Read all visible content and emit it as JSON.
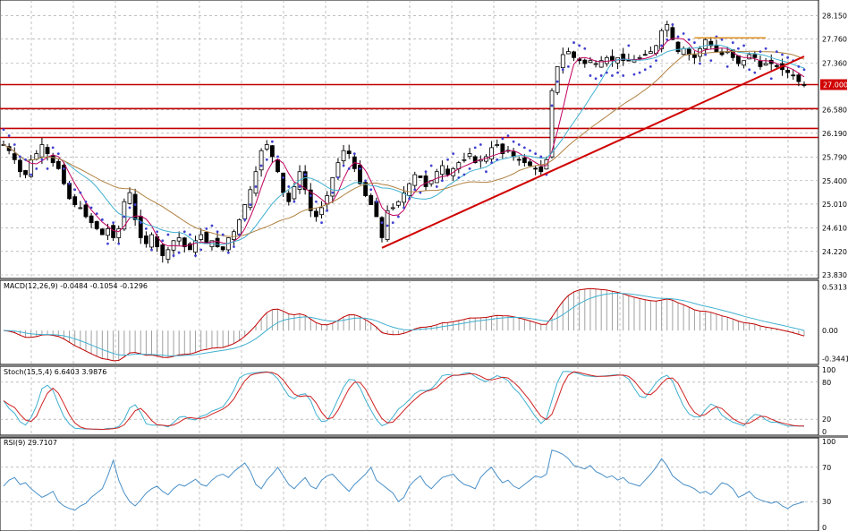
{
  "chart_data": [
    {
      "type": "candlestick",
      "price_axis_ticks": [
        "28.150",
        "27.760",
        "27.360",
        "27.000",
        "26.580",
        "26.190",
        "25.790",
        "25.400",
        "25.010",
        "24.610",
        "24.220",
        "23.830"
      ],
      "ylim": [
        23.83,
        28.35
      ],
      "current_price_label": "27.000",
      "horizontal_levels": [
        27.0,
        26.6,
        26.27,
        26.12
      ],
      "trendline": {
        "from_bar": 69,
        "from_price": 24.28,
        "to_bar": 146,
        "to_price": 27.47
      },
      "orange_level": {
        "from_bar": 126,
        "to_bar": 139,
        "price": 27.78
      },
      "close": [
        26.0,
        25.9,
        25.75,
        25.55,
        25.5,
        25.75,
        25.85,
        26.0,
        25.85,
        25.7,
        25.6,
        25.35,
        25.1,
        25.0,
        24.95,
        24.8,
        24.7,
        24.6,
        24.5,
        24.6,
        24.45,
        24.6,
        25.05,
        25.2,
        24.75,
        24.45,
        24.35,
        24.5,
        24.3,
        24.15,
        24.25,
        24.4,
        24.45,
        24.3,
        24.25,
        24.4,
        24.5,
        24.35,
        24.4,
        24.3,
        24.25,
        24.45,
        24.55,
        24.75,
        25.0,
        25.25,
        25.55,
        25.9,
        26.0,
        25.8,
        25.55,
        25.2,
        25.05,
        25.3,
        25.55,
        25.25,
        24.9,
        24.8,
        24.95,
        25.15,
        25.45,
        25.7,
        25.9,
        25.85,
        25.6,
        25.35,
        25.15,
        25.0,
        24.8,
        24.45,
        24.9,
        24.95,
        25.05,
        25.2,
        25.35,
        25.5,
        25.45,
        25.3,
        25.4,
        25.55,
        25.65,
        25.5,
        25.6,
        25.7,
        25.75,
        25.85,
        25.7,
        25.75,
        25.8,
        25.95,
        26.0,
        25.85,
        25.9,
        25.8,
        25.75,
        25.7,
        25.65,
        25.6,
        25.55,
        25.75,
        26.9,
        27.3,
        27.5,
        27.55,
        27.45,
        27.4,
        27.35,
        27.4,
        27.35,
        27.4,
        27.45,
        27.4,
        27.45,
        27.4,
        27.4,
        27.42,
        27.45,
        27.5,
        27.55,
        27.65,
        27.9,
        28.0,
        27.75,
        27.55,
        27.6,
        27.5,
        27.45,
        27.6,
        27.75,
        27.65,
        27.55,
        27.5,
        27.55,
        27.45,
        27.35,
        27.4,
        27.5,
        27.45,
        27.3,
        27.35,
        27.35,
        27.3,
        27.25,
        27.2,
        27.15,
        27.05,
        27.0
      ]
    },
    {
      "type": "line",
      "indicator_label": "MACD(12,26,9) -0.0484 -0.1054 -0.1296",
      "axis_ticks": [
        "0.5313",
        "0.00",
        "-0.3441"
      ],
      "ylim": [
        -0.37,
        0.57
      ]
    },
    {
      "type": "line",
      "indicator_label": "Stoch(15,5,4) 6.6403 3.9876",
      "axis_ticks": [
        "100",
        "80",
        "20",
        "0"
      ],
      "ylim": [
        0,
        100
      ]
    },
    {
      "type": "line",
      "indicator_label": "RSI(9) 29.7107",
      "axis_ticks": [
        "100",
        "70",
        "30",
        "0"
      ],
      "ylim": [
        0,
        100
      ],
      "values": [
        48,
        55,
        58,
        50,
        52,
        45,
        40,
        35,
        38,
        42,
        30,
        25,
        22,
        20,
        25,
        28,
        35,
        40,
        45,
        60,
        78,
        55,
        40,
        30,
        25,
        32,
        40,
        45,
        48,
        42,
        38,
        45,
        50,
        48,
        52,
        56,
        50,
        48,
        55,
        60,
        62,
        58,
        65,
        70,
        75,
        65,
        50,
        45,
        55,
        62,
        70,
        60,
        50,
        45,
        52,
        58,
        48,
        45,
        55,
        60,
        62,
        55,
        48,
        42,
        50,
        56,
        62,
        70,
        55,
        50,
        45,
        40,
        30,
        35,
        48,
        55,
        60,
        50,
        45,
        52,
        58,
        60,
        62,
        55,
        50,
        48,
        45,
        58,
        65,
        70,
        60,
        52,
        55,
        48,
        45,
        50,
        55,
        60,
        58,
        62,
        90,
        88,
        85,
        80,
        72,
        70,
        68,
        72,
        65,
        62,
        58,
        60,
        55,
        58,
        52,
        50,
        48,
        55,
        62,
        70,
        80,
        72,
        60,
        55,
        50,
        48,
        45,
        40,
        42,
        38,
        45,
        52,
        50,
        45,
        35,
        38,
        42,
        35,
        32,
        30,
        28,
        30,
        25,
        22,
        26,
        28,
        30
      ]
    }
  ]
}
